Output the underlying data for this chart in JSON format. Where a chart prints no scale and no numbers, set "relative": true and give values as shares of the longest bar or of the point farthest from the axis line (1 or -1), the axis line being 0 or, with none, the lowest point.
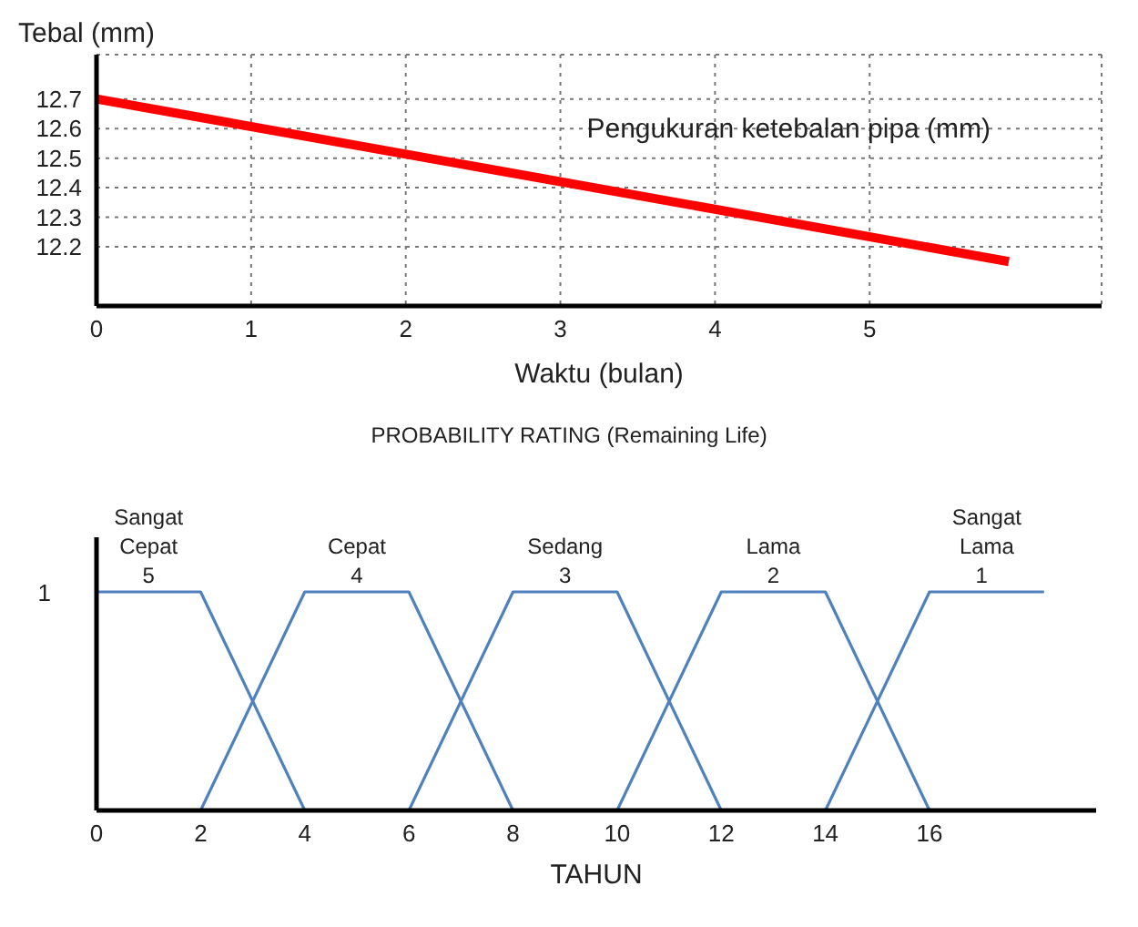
{
  "chart_data": [
    {
      "type": "line",
      "xlabel": "Waktu (bulan)",
      "ylabel": "Tebal (mm)",
      "xlim": [
        0,
        6.5
      ],
      "xticks": [
        0,
        1,
        2,
        3,
        4,
        5
      ],
      "ylim": [
        12.0,
        12.85
      ],
      "yticks": [
        12.2,
        12.3,
        12.4,
        12.5,
        12.6,
        12.7
      ],
      "grid": true,
      "legend": false,
      "series": [
        {
          "name": "Pengukuran ketebalan pipa (mm)",
          "color": "#ff0000",
          "x": [
            0,
            5.9
          ],
          "values": [
            12.7,
            12.15
          ]
        }
      ]
    },
    {
      "type": "line",
      "title": "PROBABILITY RATING (Remaining Life)",
      "xlabel": "TAHUN",
      "xlim": [
        0,
        19.2
      ],
      "xticks": [
        0,
        2,
        4,
        6,
        8,
        10,
        12,
        14,
        16
      ],
      "relative": true,
      "grid": false,
      "legend": false,
      "marker": "none",
      "series": [
        {
          "name": "Sangat Cepat",
          "color": "#4f81bd",
          "x": [
            0,
            2,
            4
          ],
          "values": [
            1,
            1,
            0
          ]
        },
        {
          "name": "Cepat",
          "color": "#4f81bd",
          "x": [
            2,
            4,
            6,
            8
          ],
          "values": [
            0,
            1,
            1,
            0
          ]
        },
        {
          "name": "Sedang",
          "color": "#4f81bd",
          "x": [
            6,
            8,
            10,
            12
          ],
          "values": [
            0,
            1,
            1,
            0
          ]
        },
        {
          "name": "Lama",
          "color": "#4f81bd",
          "x": [
            10,
            12,
            14,
            16
          ],
          "values": [
            0,
            1,
            1,
            0
          ]
        },
        {
          "name": "Sangat Lama",
          "color": "#4f81bd",
          "x": [
            14,
            16,
            18.2
          ],
          "values": [
            0,
            1,
            1
          ]
        }
      ],
      "annotations": [
        {
          "text": "1",
          "x": 0,
          "y": 1
        },
        {
          "text": "5",
          "x": 1,
          "y": 1
        },
        {
          "text": "4",
          "x": 5,
          "y": 1
        },
        {
          "text": "3",
          "x": 9,
          "y": 1
        },
        {
          "text": "2",
          "x": 13,
          "y": 1
        },
        {
          "text": "1",
          "x": 17,
          "y": 1
        }
      ]
    }
  ]
}
